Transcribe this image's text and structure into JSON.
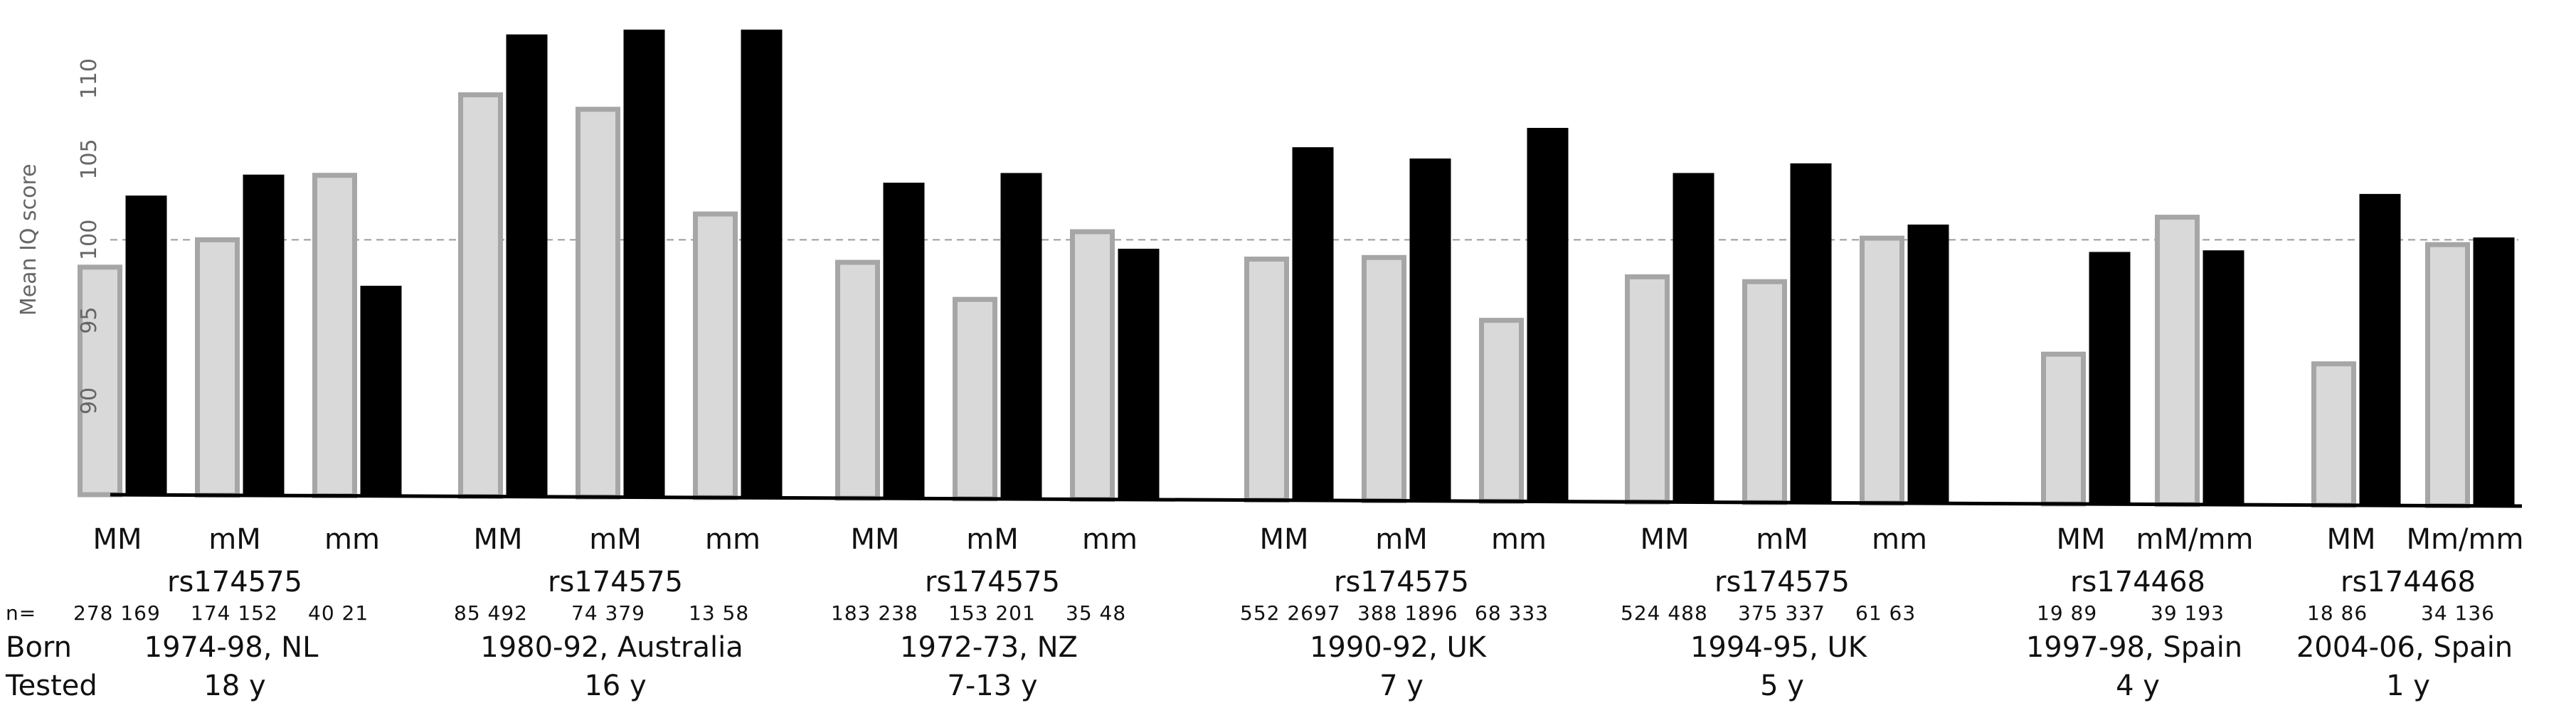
{
  "chart_data": {
    "type": "bar",
    "ylabel": "Mean IQ score",
    "yticks": [
      90,
      95,
      100,
      105,
      110
    ],
    "ylim": [
      84,
      114
    ],
    "reference_line": 100,
    "series_colors": [
      "#d9d9d9",
      "#000000"
    ],
    "series_edges": [
      "#a6a6a6",
      "#000000"
    ],
    "row_labels": {
      "n": "n=",
      "born": "Born",
      "tested": "Tested"
    },
    "groups": [
      {
        "snp": "rs174575",
        "born": "1974-98, NL",
        "tested": "18 y",
        "categories": [
          {
            "label": "MM",
            "values": [
              98.3,
              102.7
            ],
            "n": "278 169"
          },
          {
            "label": "mM",
            "values": [
              100.0,
              104.0
            ],
            "n": "174 152"
          },
          {
            "label": "mm",
            "values": [
              104.0,
              97.1
            ],
            "n": "40 21"
          }
        ]
      },
      {
        "snp": "rs174575",
        "born": "1980-92, Australia",
        "tested": "16 y",
        "categories": [
          {
            "label": "MM",
            "values": [
              109.0,
              112.7
            ],
            "n": "85 492"
          },
          {
            "label": "mM",
            "values": [
              108.1,
              113.0
            ],
            "n": "74 379"
          },
          {
            "label": "mm",
            "values": [
              101.6,
              113.0
            ],
            "n": "13 58"
          }
        ]
      },
      {
        "snp": "rs174575",
        "born": "1972-73, NZ",
        "tested": "7-13 y",
        "categories": [
          {
            "label": "MM",
            "values": [
              98.6,
              103.5
            ],
            "n": "183 238"
          },
          {
            "label": "mM",
            "values": [
              96.3,
              104.1
            ],
            "n": "153 201"
          },
          {
            "label": "mm",
            "values": [
              100.5,
              99.4
            ],
            "n": "35 48"
          }
        ]
      },
      {
        "snp": "rs174575",
        "born": "1990-92, UK",
        "tested": "7 y",
        "categories": [
          {
            "label": "MM",
            "values": [
              98.8,
              105.7
            ],
            "n": "552 2697"
          },
          {
            "label": "mM",
            "values": [
              98.9,
              105.0
            ],
            "n": "388 1896"
          },
          {
            "label": "mm",
            "values": [
              95.0,
              106.9
            ],
            "n": "68 333"
          }
        ]
      },
      {
        "snp": "rs174575",
        "born": "1994-95, UK",
        "tested": "5 y",
        "categories": [
          {
            "label": "MM",
            "values": [
              97.7,
              104.1
            ],
            "n": "524 488"
          },
          {
            "label": "mM",
            "values": [
              97.4,
              104.7
            ],
            "n": "375 337"
          },
          {
            "label": "mm",
            "values": [
              100.1,
              100.9
            ],
            "n": "61 63"
          }
        ]
      },
      {
        "snp": "rs174468",
        "born": "1997-98, Spain",
        "tested": "4 y",
        "categories": [
          {
            "label": "MM",
            "values": [
              92.9,
              99.2
            ],
            "n": "19 89"
          },
          {
            "label": "mM/mm",
            "values": [
              101.4,
              99.3
            ],
            "n": "39 193"
          }
        ]
      },
      {
        "snp": "rs174468",
        "born": "2004-06, Spain",
        "tested": "1 y",
        "categories": [
          {
            "label": "MM",
            "values": [
              92.3,
              102.8
            ],
            "n": "18 86"
          },
          {
            "label": "Mm/mm",
            "values": [
              99.7,
              100.1
            ],
            "n": "34 136"
          }
        ]
      }
    ]
  }
}
